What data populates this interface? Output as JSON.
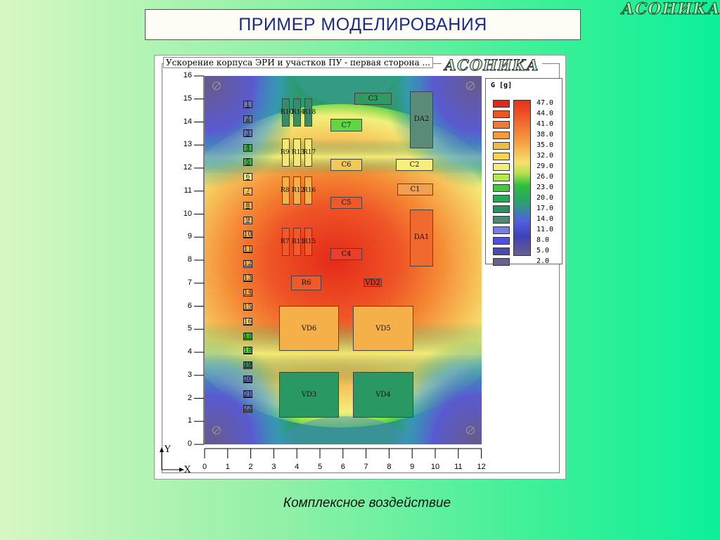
{
  "brand": "АСОНИКА",
  "title": "ПРИМЕР МОДЕЛИРОВАНИЯ",
  "panel": {
    "label": "Ускорение корпуса ЭРИ и участков ПУ - первая сторона ...",
    "brand": "АСОНИКА"
  },
  "caption": "Комплексное воздействие",
  "axis": {
    "x_label": "X",
    "y_label": "Y",
    "x_ticks": [
      "0",
      "1",
      "2",
      "3",
      "4",
      "5",
      "6",
      "7",
      "8",
      "9",
      "10",
      "11",
      "12"
    ],
    "y_ticks": [
      "0",
      "1",
      "2",
      "3",
      "4",
      "5",
      "6",
      "7",
      "8",
      "9",
      "10",
      "11",
      "12",
      "13",
      "14",
      "15",
      "16"
    ]
  },
  "legend": {
    "title": "G [g]",
    "values": [
      "47.0",
      "44.0",
      "41.0",
      "38.0",
      "35.0",
      "32.0",
      "29.0",
      "26.0",
      "23.0",
      "20.0",
      "17.0",
      "14.0",
      "11.0",
      "8.0",
      "5.0",
      "2.0"
    ],
    "colors": [
      "#e4261b",
      "#ee5522",
      "#f27a2c",
      "#f59a3a",
      "#f7b84a",
      "#f8d25a",
      "#f4ee7a",
      "#b4ea4a",
      "#44c83c",
      "#2aa858",
      "#2a9060",
      "#4c8a78",
      "#7a7ae8",
      "#5050d8",
      "#4a4ab0",
      "#6a6090"
    ]
  },
  "components": [
    {
      "label": "C3",
      "color": "#2f9a62"
    },
    {
      "label": "DA2",
      "color": "#5a8a78"
    },
    {
      "label": "C7",
      "color": "#5ed840"
    },
    {
      "label": "C6",
      "color": "#f2c858"
    },
    {
      "label": "C2",
      "color": "#f6f07a"
    },
    {
      "label": "C1",
      "color": "#f0a050"
    },
    {
      "label": "C5",
      "color": "#ee5a2a"
    },
    {
      "label": "DA1",
      "color": "#f06a30"
    },
    {
      "label": "C4",
      "color": "#e8402a"
    },
    {
      "label": "R6",
      "color": "#ee5a2a"
    },
    {
      "label": "VD2",
      "color": "#e4361e"
    },
    {
      "label": "VD6",
      "color": "#f6b04a"
    },
    {
      "label": "VD5",
      "color": "#f6b04a"
    },
    {
      "label": "VD3",
      "color": "#2a9862"
    },
    {
      "label": "VD4",
      "color": "#2a9862"
    }
  ],
  "resistors": {
    "row1": {
      "labels": [
        "R10",
        "R14",
        "R18"
      ],
      "color": "#3a8a6c"
    },
    "row2": {
      "labels": [
        "R9",
        "R13",
        "R17"
      ],
      "color": "#f2e87a"
    },
    "row3": {
      "labels": [
        "R8",
        "R12",
        "R16"
      ],
      "color": "#f6b04a"
    },
    "row4": {
      "labels": [
        "R7",
        "R11",
        "R15"
      ],
      "color": "#ee5a2a"
    }
  },
  "pins": [
    {
      "n": "1",
      "c": "#6070d0"
    },
    {
      "n": "2",
      "c": "#6070d0"
    },
    {
      "n": "3",
      "c": "#6070d0"
    },
    {
      "n": "4",
      "c": "#3ab040"
    },
    {
      "n": "5",
      "c": "#3ab040"
    },
    {
      "n": "6",
      "c": "#f6f07a"
    },
    {
      "n": "7",
      "c": "#f6c058"
    },
    {
      "n": "8",
      "c": "#f6b04a"
    },
    {
      "n": "9",
      "c": "#f6b04a"
    },
    {
      "n": "10",
      "c": "#f6b04a"
    },
    {
      "n": "11",
      "c": "#f6b04a"
    },
    {
      "n": "12",
      "c": "#f6b04a"
    },
    {
      "n": "13",
      "c": "#f6b04a"
    },
    {
      "n": "14",
      "c": "#f6b04a"
    },
    {
      "n": "15",
      "c": "#f6b04a"
    },
    {
      "n": "16",
      "c": "#f6d060"
    },
    {
      "n": "17",
      "c": "#3ab040"
    },
    {
      "n": "18",
      "c": "#5ed840"
    },
    {
      "n": "19",
      "c": "#2a8a60"
    },
    {
      "n": "20",
      "c": "#6070d0"
    },
    {
      "n": "21",
      "c": "#6070d0"
    },
    {
      "n": "22",
      "c": "#6070d0"
    }
  ]
}
